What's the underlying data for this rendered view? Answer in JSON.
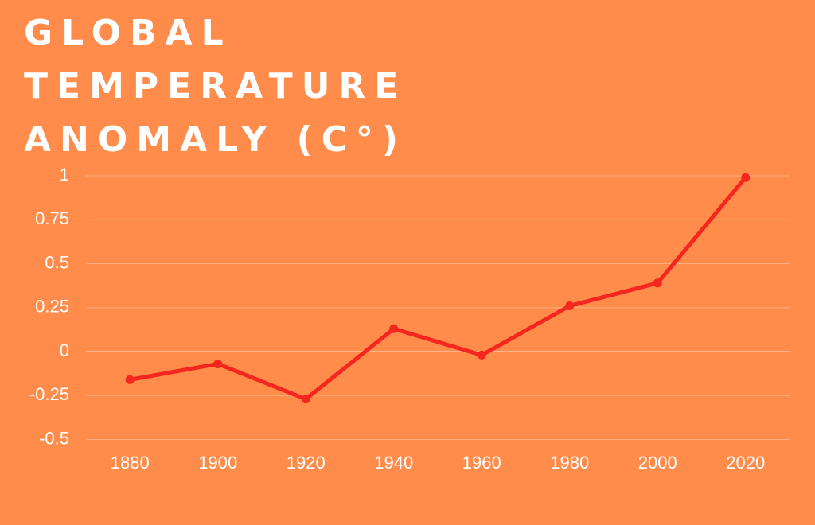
{
  "chart_data": {
    "type": "line",
    "title": "GLOBAL TEMPERATURE ANOMALY (C°)",
    "x": [
      1880,
      1900,
      1920,
      1940,
      1960,
      1980,
      2000,
      2020
    ],
    "series": [
      {
        "color": "#f5261e",
        "values": [
          -0.16,
          -0.07,
          -0.27,
          0.13,
          -0.02,
          0.26,
          0.39,
          0.99
        ]
      }
    ],
    "xlim": [
      1870,
      2030
    ],
    "xticks": [
      1880,
      1900,
      1920,
      1940,
      1960,
      1980,
      2000,
      2020
    ],
    "ylim": [
      -0.5,
      1
    ],
    "yticks": [
      1,
      0.75,
      0.5,
      0.25,
      0,
      -0.25,
      -0.5
    ],
    "grid": true
  }
}
